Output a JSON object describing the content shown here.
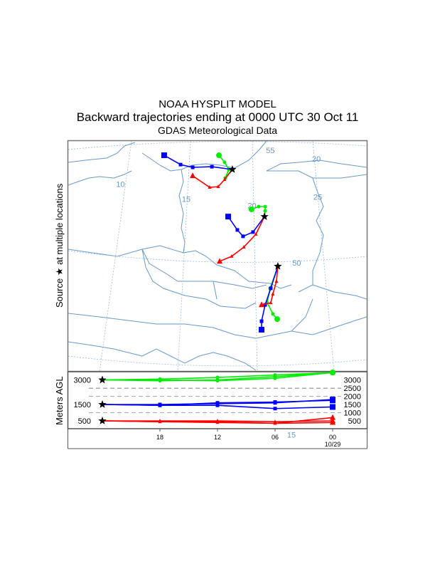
{
  "chart_data": {
    "type": "line",
    "title": "NOAA HYSPLIT MODEL",
    "subtitle": "Backward trajectories ending at 0000 UTC 30 Oct 11",
    "data_source": "GDAS Meteorological Data",
    "left_label": "Source ★ at multiple locations",
    "height_axis_label": "Meters AGL",
    "map_grid_labels": [
      {
        "text": "55",
        "lon": 21.4,
        "lat": 55.2
      },
      {
        "text": "10",
        "lon": 10,
        "lat": 53.6
      },
      {
        "text": "15",
        "lon": 15,
        "lat": 52.9
      },
      {
        "text": "20",
        "lon": 20,
        "lat": 52.6
      },
      {
        "text": "25",
        "lon": 25,
        "lat": 53.0
      },
      {
        "text": "50",
        "lon": 23.4,
        "lat": 49.9
      },
      {
        "text": "20",
        "lon": 24.9,
        "lat": 54.8
      },
      {
        "text": "15",
        "lon": 23.0,
        "lat": 41.8
      }
    ],
    "colors": {
      "500": "#ff0000",
      "1500": "#0000ff",
      "3000": "#00ee00",
      "map": "#6699cc"
    },
    "sources": [
      {
        "lon": 18.51,
        "lat": 54.43,
        "trajectories": [
          {
            "height": 500,
            "marker": "triangle",
            "points": [
              [
                18.51,
                54.43
              ],
              [
                17.92,
                53.96
              ],
              [
                17.43,
                53.62
              ],
              [
                16.78,
                53.59
              ],
              [
                15.49,
                54.13
              ]
            ]
          },
          {
            "height": 1500,
            "marker": "square",
            "points": [
              [
                18.51,
                54.43
              ],
              [
                16.95,
                54.56
              ],
              [
                15.49,
                54.53
              ],
              [
                14.57,
                54.66
              ],
              [
                13.32,
                55.1
              ]
            ]
          },
          {
            "height": 3000,
            "marker": "circle",
            "points": [
              [
                18.51,
                54.43
              ],
              [
                17.97,
                54.03
              ],
              [
                18.24,
                54.43
              ],
              [
                17.92,
                54.77
              ],
              [
                17.49,
                55.1
              ]
            ]
          }
        ]
      },
      {
        "lon": 20.95,
        "lat": 52.21,
        "trajectories": [
          {
            "height": 500,
            "marker": "triangle",
            "points": [
              [
                20.95,
                52.21
              ],
              [
                20.3,
                51.38
              ],
              [
                19.38,
                50.77
              ],
              [
                18.46,
                50.34
              ],
              [
                17.54,
                50.1
              ]
            ]
          },
          {
            "height": 1500,
            "marker": "square",
            "points": [
              [
                20.95,
                52.21
              ],
              [
                20.08,
                51.48
              ],
              [
                19.32,
                51.28
              ],
              [
                18.89,
                51.58
              ],
              [
                18.19,
                52.21
              ]
            ]
          },
          {
            "height": 3000,
            "marker": "circle",
            "points": [
              [
                20.95,
                52.21
              ],
              [
                21.0,
                52.48
              ],
              [
                21.0,
                52.68
              ],
              [
                20.51,
                52.68
              ],
              [
                19.97,
                52.55
              ]
            ]
          }
        ]
      },
      {
        "lon": 21.97,
        "lat": 49.87,
        "trajectories": [
          {
            "height": 500,
            "marker": "triangle",
            "points": [
              [
                21.97,
                49.87
              ],
              [
                21.86,
                49.16
              ],
              [
                21.59,
                48.56
              ],
              [
                21.43,
                48.15
              ],
              [
                20.73,
                48.05
              ]
            ]
          },
          {
            "height": 1500,
            "marker": "square",
            "points": [
              [
                21.97,
                49.87
              ],
              [
                21.43,
                48.83
              ],
              [
                21.0,
                48.05
              ],
              [
                20.73,
                47.28
              ],
              [
                20.73,
                46.88
              ]
            ]
          },
          {
            "height": 3000,
            "marker": "circle",
            "points": [
              [
                21.97,
                49.87
              ],
              [
                21.38,
                48.83
              ],
              [
                21.16,
                48.15
              ],
              [
                21.59,
                47.62
              ],
              [
                21.92,
                47.38
              ]
            ]
          }
        ]
      }
    ],
    "hours_back": [
      0,
      6,
      12,
      18,
      24
    ],
    "time_tick_labels": [
      "18",
      "12",
      "06",
      "00"
    ],
    "time_tick_hours_back": [
      6,
      12,
      18,
      24
    ],
    "date_label": "10/29",
    "height_left_labels": [
      "3000",
      "1500",
      "500"
    ],
    "height_right_labels": [
      "3000",
      "2500",
      "2000",
      "1500",
      "1000",
      "500"
    ],
    "height_profiles": [
      {
        "height": 3000,
        "values": [
          3000,
          2950,
          3000,
          3200,
          3450
        ]
      },
      {
        "height": 3000,
        "values": [
          3000,
          3050,
          3150,
          3300,
          3450
        ]
      },
      {
        "height": 3000,
        "values": [
          3000,
          3000,
          2950,
          3100,
          3450
        ]
      },
      {
        "height": 1500,
        "values": [
          1500,
          1450,
          1600,
          1650,
          1750
        ]
      },
      {
        "height": 1500,
        "values": [
          1500,
          1500,
          1550,
          1600,
          1800
        ]
      },
      {
        "height": 1500,
        "values": [
          1500,
          1450,
          1450,
          1250,
          1350
        ]
      },
      {
        "height": 500,
        "values": [
          500,
          450,
          450,
          350,
          700
        ]
      },
      {
        "height": 500,
        "values": [
          500,
          500,
          500,
          450,
          500
        ]
      },
      {
        "height": 500,
        "values": [
          500,
          450,
          400,
          350,
          400
        ]
      }
    ]
  }
}
